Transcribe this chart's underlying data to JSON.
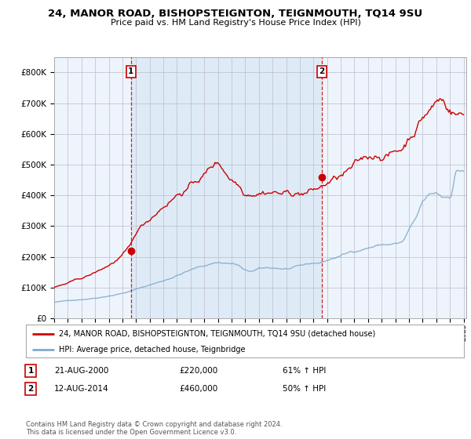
{
  "title": "24, MANOR ROAD, BISHOPSTEIGNTON, TEIGNMOUTH, TQ14 9SU",
  "subtitle": "Price paid vs. HM Land Registry's House Price Index (HPI)",
  "ylim": [
    0,
    850000
  ],
  "yticks": [
    0,
    100000,
    200000,
    300000,
    400000,
    500000,
    600000,
    700000,
    800000
  ],
  "ytick_labels": [
    "£0",
    "£100K",
    "£200K",
    "£300K",
    "£400K",
    "£500K",
    "£600K",
    "£700K",
    "£800K"
  ],
  "hpi_color": "#7faacc",
  "price_color": "#cc0000",
  "marker_color": "#cc0000",
  "background_color": "#ffffff",
  "plot_bg_color": "#eef4fb",
  "grid_color": "#bbbbcc",
  "sale1_date": "21-AUG-2000",
  "sale1_price": 220000,
  "sale1_pct": "61%",
  "sale2_date": "12-AUG-2014",
  "sale2_price": 460000,
  "sale2_pct": "50%",
  "legend_property": "24, MANOR ROAD, BISHOPSTEIGNTON, TEIGNMOUTH, TQ14 9SU (detached house)",
  "legend_hpi": "HPI: Average price, detached house, Teignbridge",
  "footer": "Contains HM Land Registry data © Crown copyright and database right 2024.\nThis data is licensed under the Open Government Licence v3.0.",
  "sale1_x": 2000.625,
  "sale2_x": 2014.625,
  "xmin": 1995.0,
  "xmax": 2025.2
}
